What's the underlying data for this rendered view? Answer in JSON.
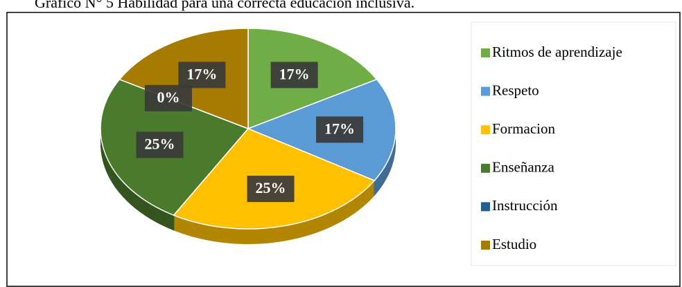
{
  "chart_data": {
    "type": "pie",
    "title": "Gráfico N° 5 Habilidad para una correcta educación inclusiva.",
    "categories": [
      "Ritmos de aprendizaje",
      "Respeto",
      "Formacion",
      "Enseñanza",
      "Instrucción",
      "Estudio"
    ],
    "values": [
      17,
      17,
      25,
      25,
      0,
      17
    ],
    "value_labels": [
      "17%",
      "17%",
      "25%",
      "25%",
      "0%",
      "17%"
    ],
    "colors": [
      "#70ad47",
      "#5b9bd5",
      "#ffc000",
      "#4a7a2c",
      "#255e91",
      "#a67c00"
    ],
    "legend": "right"
  }
}
